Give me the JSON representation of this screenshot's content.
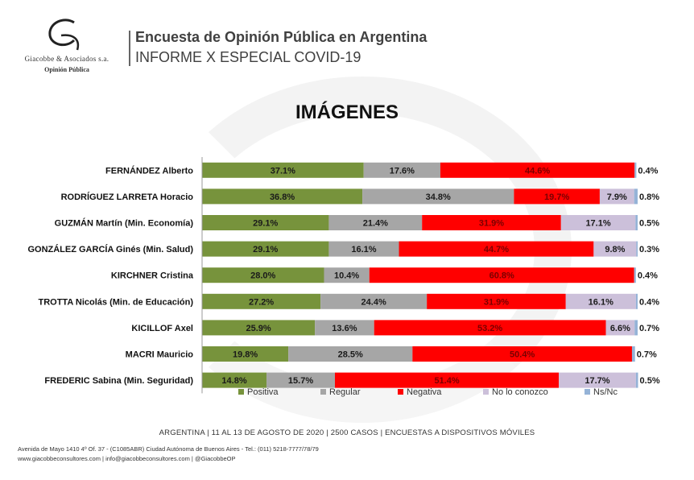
{
  "header": {
    "logo_name": "Giacobbe & Asociados s.a.",
    "logo_sub": "Opinión Pública",
    "title": "Encuesta de Opinión Pública en Argentina",
    "subtitle": "INFORME X ESPECIAL COVID-19"
  },
  "chart_data": {
    "type": "bar",
    "orientation": "horizontal",
    "stacked": true,
    "title": "IMÁGENES",
    "xlim": [
      0,
      100
    ],
    "categories": [
      "FERNÁNDEZ Alberto",
      "RODRÍGUEZ LARRETA Horacio",
      "GUZMÁN Martín (Min. Economía)",
      "GONZÁLEZ GARCÍA Ginés (Min. Salud)",
      "KIRCHNER Cristina",
      "TROTTA Nicolás (Min. de Educación)",
      "KICILLOF Axel",
      "MACRI Mauricio",
      "FREDERIC Sabina (Min. Seguridad)"
    ],
    "series": [
      {
        "name": "Positiva",
        "color": "#77933c",
        "label_color": "#1a1a1a",
        "values": [
          37.1,
          36.8,
          29.1,
          29.1,
          28.0,
          27.2,
          25.9,
          19.8,
          14.8
        ]
      },
      {
        "name": "Regular",
        "color": "#a6a6a6",
        "label_color": "#1a1a1a",
        "values": [
          17.6,
          34.8,
          21.4,
          16.1,
          10.4,
          24.4,
          13.6,
          28.5,
          15.7
        ]
      },
      {
        "name": "Negativa",
        "color": "#ff0000",
        "label_color": "#7a0000",
        "values": [
          44.6,
          19.7,
          31.9,
          44.7,
          60.8,
          31.9,
          53.2,
          50.4,
          51.4
        ]
      },
      {
        "name": "No lo conozco",
        "color": "#ccc0da",
        "label_color": "#1a1a1a",
        "values": [
          0.0,
          7.9,
          17.1,
          9.8,
          0.0,
          16.1,
          6.6,
          0.0,
          17.7
        ]
      },
      {
        "name": "Ns/Nc",
        "color": "#95b3d7",
        "label_color": "#1a1a1a",
        "values": [
          0.4,
          0.8,
          0.5,
          0.3,
          0.4,
          0.4,
          0.7,
          0.7,
          0.5
        ]
      }
    ],
    "legend_position": "bottom"
  },
  "footer": {
    "line": "ARGENTINA | 11 AL 13 DE AGOSTO DE 2020 | 2500 CASOS | ENCUESTAS A DISPOSITIVOS MÓVILES",
    "address": "Avenida de Mayo 1410 4º Of. 37 - (C1085ABR) Ciudad Autónoma de Buenos Aires - Tel.: (011) 5218-7777/78/79",
    "web": "www.giacobbeconsultores.com | info@giacobbeconsultores.com | @GiacobbeOP"
  }
}
